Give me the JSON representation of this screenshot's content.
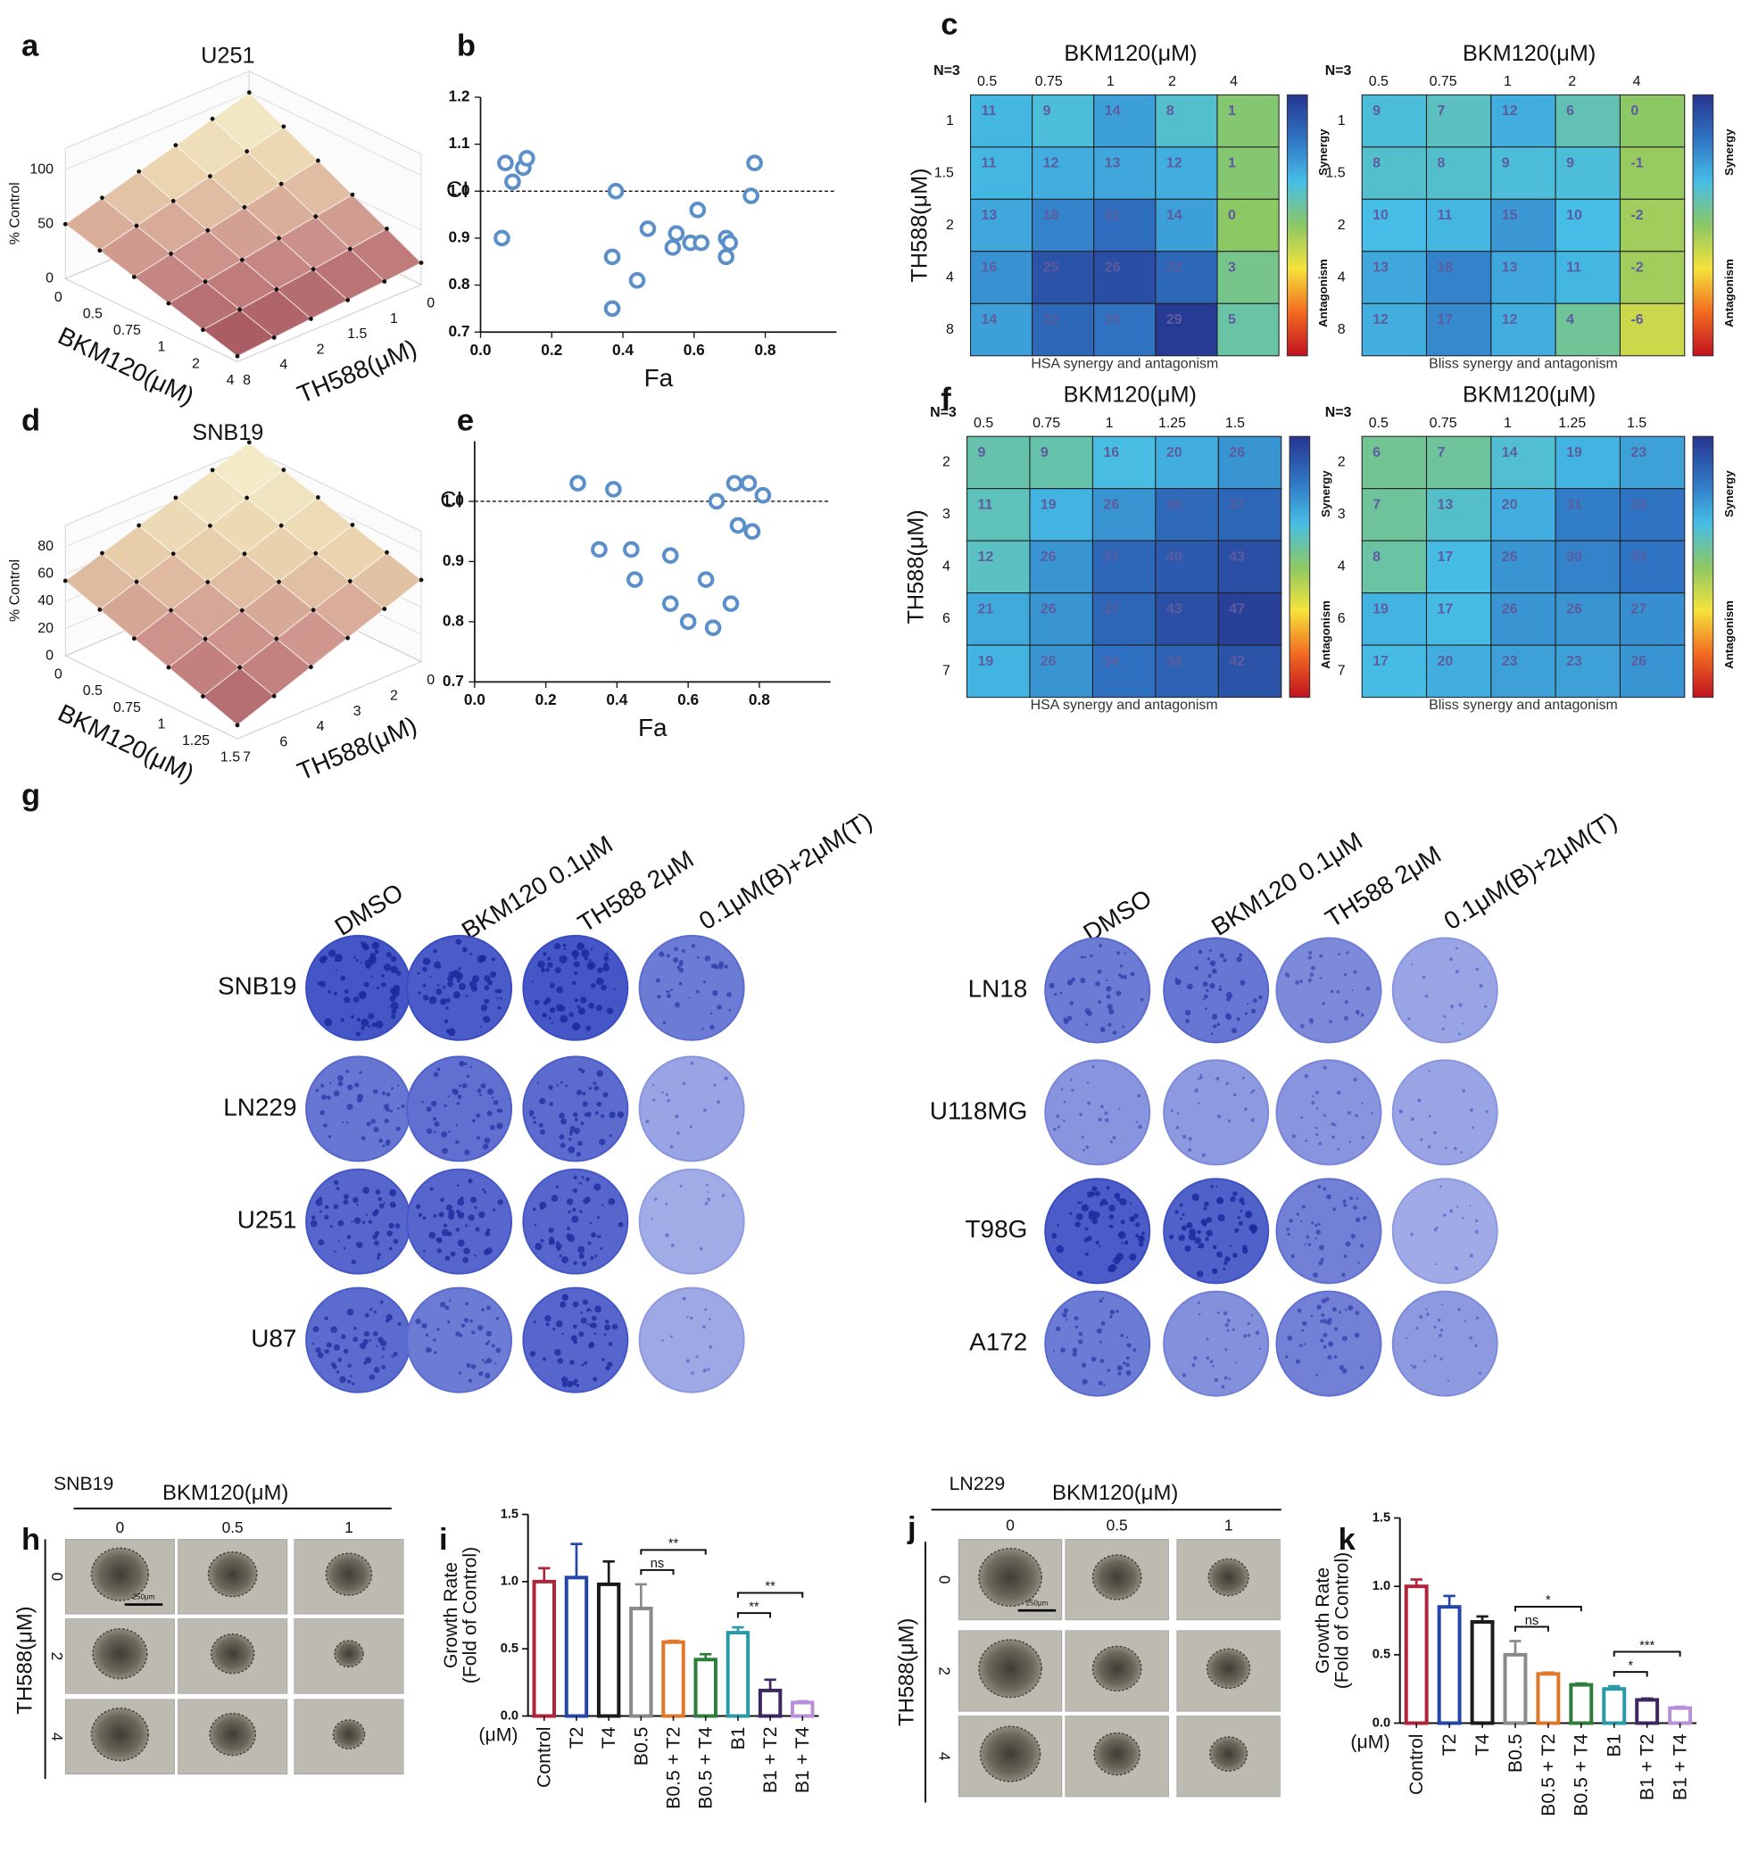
{
  "panel_labels": [
    "a",
    "b",
    "c",
    "d",
    "e",
    "f",
    "g",
    "h",
    "i",
    "j",
    "k"
  ],
  "surfaces": [
    {
      "title": "U251",
      "z_label": "% Control",
      "zticks": [
        0,
        50,
        100
      ],
      "x_label": "BKM120(μM)",
      "xticks": [
        0,
        0.5,
        0.75,
        1,
        2,
        4
      ],
      "y_label": "TH588(μM)",
      "yticks": [
        8,
        4,
        2,
        1.5,
        1,
        0
      ],
      "values": [
        [
          100,
          20
        ],
        [
          50,
          5
        ]
      ]
    },
    {
      "title": "SNB19",
      "z_label": "% Control",
      "zticks": [
        0,
        20,
        40,
        60,
        80
      ],
      "x_label": "BKM120(μM)",
      "xticks": [
        0,
        0.5,
        0.75,
        1,
        1.25,
        1.5
      ],
      "y_label": "TH588(μM)",
      "yticks": [
        7,
        6,
        4,
        3,
        2,
        0
      ],
      "values": [
        [
          100,
          60
        ],
        [
          55,
          10
        ]
      ]
    }
  ],
  "chart_data": [
    {
      "type": "scatter",
      "x_label": "Fa",
      "reference": 1,
      "reference_label": "CI",
      "color": "#5b8fc9",
      "x": [
        0.07,
        0.09,
        0.12,
        0.13,
        0.06,
        0.38,
        0.37,
        0.44,
        0.37,
        0.47,
        0.54,
        0.55,
        0.59,
        0.62,
        0.61,
        0.69,
        0.7,
        0.69,
        0.77,
        0.76
      ],
      "values": [
        1.06,
        1.02,
        1.05,
        1.07,
        0.9,
        1.0,
        0.86,
        0.81,
        0.75,
        0.92,
        0.88,
        0.91,
        0.89,
        0.89,
        0.96,
        0.9,
        0.89,
        0.86,
        1.06,
        0.99
      ],
      "xlim": [
        0,
        1
      ],
      "xticks": [
        {
          "value": 0,
          "label": "0.0"
        },
        0.2,
        0.4,
        0.6,
        0.8
      ],
      "ylim": [
        0.7,
        1.2
      ],
      "yticks": [
        0.7,
        0.8,
        0.9,
        {
          "value": 1,
          "label": "1.0"
        },
        1.1,
        1.2
      ]
    },
    {
      "type": "scatter",
      "x_label": "Fa",
      "reference": 1,
      "reference_label": "CI",
      "color": "#5b8fc9",
      "x": [
        0.29,
        0.39,
        0.35,
        0.44,
        0.45,
        0.55,
        0.55,
        0.6,
        0.65,
        0.67,
        0.72,
        0.68,
        0.73,
        0.77,
        0.81,
        0.74,
        0.78
      ],
      "values": [
        1.03,
        1.02,
        0.92,
        0.92,
        0.87,
        0.91,
        0.83,
        0.8,
        0.87,
        0.79,
        0.83,
        1.0,
        1.03,
        1.03,
        1.01,
        0.96,
        0.95
      ],
      "xlim": [
        0,
        1
      ],
      "xticks": [
        {
          "value": 0,
          "label": "0.0"
        },
        0.2,
        0.4,
        0.6,
        0.8
      ],
      "ylim": [
        0.7,
        1.1
      ],
      "yticks": [
        0.7,
        0.8,
        0.9,
        {
          "value": 1,
          "label": "1.0"
        }
      ]
    },
    {
      "type": "heatmap",
      "title": "BKM120(μM)",
      "note": "N=3",
      "y_label": "TH588(μM)",
      "caption": "HSA synergy and antagonism",
      "x": [
        0.5,
        0.75,
        1,
        2,
        4
      ],
      "y": [
        1,
        1.5,
        2,
        4,
        8
      ],
      "values": [
        [
          11,
          9,
          14,
          8,
          1
        ],
        [
          11,
          12,
          13,
          12,
          1
        ],
        [
          13,
          18,
          21,
          14,
          0
        ],
        [
          16,
          25,
          26,
          22,
          3
        ],
        [
          14,
          22,
          20,
          29,
          5
        ]
      ],
      "zlim": [
        -30,
        30
      ],
      "colorscale": [
        "#c1121f",
        "#f26b21",
        "#f5e33b",
        "#8cc864",
        "#46bde6",
        "#2f73c2",
        "#27358f"
      ],
      "colorbar_labels": [
        "Synergy",
        "Antagonism"
      ]
    },
    {
      "type": "heatmap",
      "title": "BKM120(μM)",
      "note": "N=3",
      "caption": "Bliss synergy and antagonism",
      "x": [
        0.5,
        0.75,
        1,
        2,
        4
      ],
      "y": [
        1,
        1.5,
        2,
        4,
        8
      ],
      "values": [
        [
          9,
          7,
          12,
          6,
          0
        ],
        [
          8,
          8,
          9,
          9,
          -1
        ],
        [
          10,
          11,
          15,
          10,
          -2
        ],
        [
          13,
          18,
          13,
          11,
          -2
        ],
        [
          12,
          17,
          12,
          4,
          -6
        ]
      ],
      "zlim": [
        -30,
        30
      ],
      "colorscale": [
        "#c1121f",
        "#f26b21",
        "#f5e33b",
        "#8cc864",
        "#46bde6",
        "#2f73c2",
        "#27358f"
      ],
      "colorbar_labels": [
        "Synergy",
        "Antagonism"
      ]
    },
    {
      "type": "heatmap",
      "title": "BKM120(μM)",
      "note": "N=3",
      "y_label": "TH588(μM)",
      "caption": "HSA synergy and antagonism",
      "x": [
        0.5,
        0.75,
        1,
        1.25,
        1.5
      ],
      "y": [
        2,
        3,
        4,
        6,
        7
      ],
      "values": [
        [
          9,
          9,
          16,
          20,
          26
        ],
        [
          11,
          19,
          26,
          36,
          37
        ],
        [
          12,
          26,
          37,
          40,
          43
        ],
        [
          21,
          26,
          37,
          43,
          47
        ],
        [
          19,
          26,
          34,
          38,
          42
        ]
      ],
      "zlim": [
        -50,
        50
      ],
      "colorscale": [
        "#c1121f",
        "#f26b21",
        "#f5e33b",
        "#8cc864",
        "#46bde6",
        "#2f73c2",
        "#27358f"
      ],
      "colorbar_labels": [
        "Synergy",
        "Antagonism"
      ]
    },
    {
      "type": "heatmap",
      "title": "BKM120(μM)",
      "note": "N=3",
      "caption": "Bliss synergy and antagonism",
      "x": [
        0.5,
        0.75,
        1,
        1.25,
        1.5
      ],
      "y": [
        2,
        3,
        4,
        6,
        7
      ],
      "values": [
        [
          6,
          7,
          14,
          19,
          23
        ],
        [
          7,
          13,
          20,
          31,
          33
        ],
        [
          8,
          17,
          26,
          30,
          33
        ],
        [
          19,
          17,
          26,
          26,
          27
        ],
        [
          17,
          20,
          23,
          23,
          26
        ]
      ],
      "zlim": [
        -50,
        50
      ],
      "colorscale": [
        "#c1121f",
        "#f26b21",
        "#f5e33b",
        "#8cc864",
        "#46bde6",
        "#2f73c2",
        "#27358f"
      ],
      "colorbar_labels": [
        "Synergy",
        "Antagonism"
      ]
    },
    {
      "type": "bar",
      "y_label": [
        "Growth Rate",
        "(Fold of Control)"
      ],
      "unit_label": "(μM)",
      "categories": [
        "Control",
        "T2",
        "T4",
        "B0.5",
        "B0.5 + T2",
        "B0.5 + T4",
        "B1",
        "B1 + T2",
        "B1 + T4"
      ],
      "values": [
        1.0,
        1.03,
        0.98,
        0.8,
        0.55,
        0.42,
        0.62,
        0.19,
        0.1
      ],
      "errors": [
        0.1,
        0.25,
        0.17,
        0.18,
        0.01,
        0.04,
        0.04,
        0.08,
        0.01
      ],
      "colors": [
        "#b0233a",
        "#2446a8",
        "#1a1a1a",
        "#8a8a8a",
        "#e0782a",
        "#2e7d3a",
        "#2a9aa8",
        "#3e2760",
        "#b88fd8"
      ],
      "ylim": [
        0,
        1.5
      ],
      "yticks": [
        {
          "value": 0,
          "label": "0.0"
        },
        0.5,
        {
          "value": 1,
          "label": "1.0"
        },
        1.5
      ],
      "significance": [
        {
          "from": "B0.5",
          "to": "B0.5 + T2",
          "label": "ns"
        },
        {
          "from": "B0.5",
          "to": "B0.5 + T4",
          "label": "**"
        },
        {
          "from": "B1",
          "to": "B1 + T2",
          "label": "**"
        },
        {
          "from": "B1",
          "to": "B1 + T4",
          "label": "**"
        }
      ]
    },
    {
      "type": "bar",
      "y_label": [
        "Growth Rate",
        "(Fold of Control)"
      ],
      "unit_label": "(μM)",
      "categories": [
        "Control",
        "T2",
        "T4",
        "B0.5",
        "B0.5 + T2",
        "B0.5 + T4",
        "B1",
        "B1 + T2",
        "B1 + T4"
      ],
      "values": [
        1.0,
        0.85,
        0.74,
        0.5,
        0.36,
        0.28,
        0.25,
        0.17,
        0.11
      ],
      "errors": [
        0.05,
        0.08,
        0.04,
        0.1,
        0.01,
        0.01,
        0.02,
        0.01,
        0.01
      ],
      "colors": [
        "#b0233a",
        "#2446a8",
        "#1a1a1a",
        "#8a8a8a",
        "#e0782a",
        "#2e7d3a",
        "#2a9aa8",
        "#3e2760",
        "#b88fd8"
      ],
      "ylim": [
        0,
        1.5
      ],
      "yticks": [
        {
          "value": 0,
          "label": "0.0"
        },
        0.5,
        {
          "value": 1,
          "label": "1.0"
        },
        1.5
      ],
      "significance": [
        {
          "from": "B0.5",
          "to": "B0.5 + T2",
          "label": "ns"
        },
        {
          "from": "B0.5",
          "to": "B0.5 + T4",
          "label": "*"
        },
        {
          "from": "B1",
          "to": "B1 + T2",
          "label": "*"
        },
        {
          "from": "B1",
          "to": "B1 + T4",
          "label": "***"
        }
      ]
    }
  ],
  "colony": {
    "columns": [
      "DMSO",
      "BKM120 0.1μM",
      "TH588 2μM",
      "0.1μM(B)+2μM(T)"
    ],
    "left_rows": [
      "SNB19",
      "LN229",
      "U251",
      "U87"
    ],
    "right_rows": [
      "LN18",
      "U118MG",
      "T98G",
      "A172"
    ]
  },
  "spheroids": [
    {
      "cell_line": "SNB19",
      "x_label": "BKM120(μM)",
      "columns": [
        0,
        0.5,
        1
      ],
      "y_label": "TH588(μM)",
      "rows": [
        0,
        2,
        4
      ],
      "scale_bar": "250μm"
    },
    {
      "cell_line": "LN229",
      "x_label": "BKM120(μM)",
      "columns": [
        0,
        0.5,
        1
      ],
      "y_label": "TH588(μM)",
      "rows": [
        0,
        2,
        4
      ],
      "scale_bar": "250μm"
    }
  ]
}
